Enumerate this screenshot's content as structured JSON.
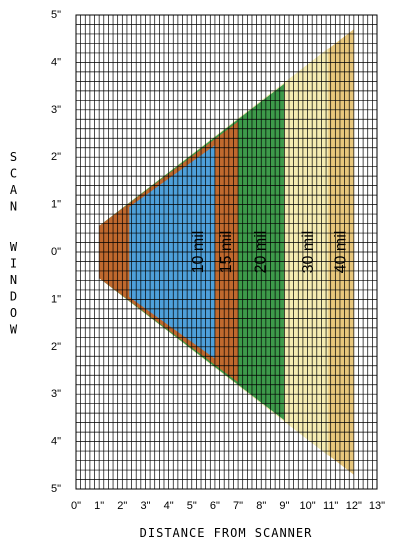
{
  "chart_data": {
    "type": "area",
    "xlabel": "DISTANCE FROM SCANNER",
    "ylabel": "SCAN WINDOW",
    "xlim": [
      0,
      13
    ],
    "ylim": [
      -5,
      5
    ],
    "x_ticks": [
      "0\"",
      "1\"",
      "2\"",
      "3\"",
      "4\"",
      "5\"",
      "6\"",
      "7\"",
      "8\"",
      "9\"",
      "10\"",
      "11\"",
      "12\"",
      "13\""
    ],
    "y_ticks": [
      "5\"",
      "4\"",
      "3\"",
      "2\"",
      "1\"",
      "0\"",
      "1\"",
      "2\"",
      "3\"",
      "4\"",
      "5\""
    ],
    "grid": true,
    "series": [
      {
        "name": "40 mil",
        "color": "#e8c77c",
        "x_start": 1.0,
        "x_end": 12.0,
        "half_width_start": 0.55,
        "half_width_end": 4.7
      },
      {
        "name": "30 mil",
        "color": "#f5ecb2",
        "x_start": 1.0,
        "x_end": 10.9,
        "half_width_start": 0.55,
        "half_width_end": 4.3
      },
      {
        "name": "20 mil",
        "color": "#3d9a4a",
        "x_start": 1.0,
        "x_end": 9.0,
        "half_width_start": 0.55,
        "half_width_end": 3.55
      },
      {
        "name": "15 mil",
        "color": "#c0692e",
        "x_start": 1.0,
        "x_end": 7.0,
        "half_width_start": 0.55,
        "half_width_end": 2.75
      },
      {
        "name": "10 mil",
        "color": "#4ea0da",
        "x_start": 2.3,
        "x_end": 6.0,
        "half_width_start": 0.95,
        "half_width_end": 2.25
      }
    ]
  }
}
